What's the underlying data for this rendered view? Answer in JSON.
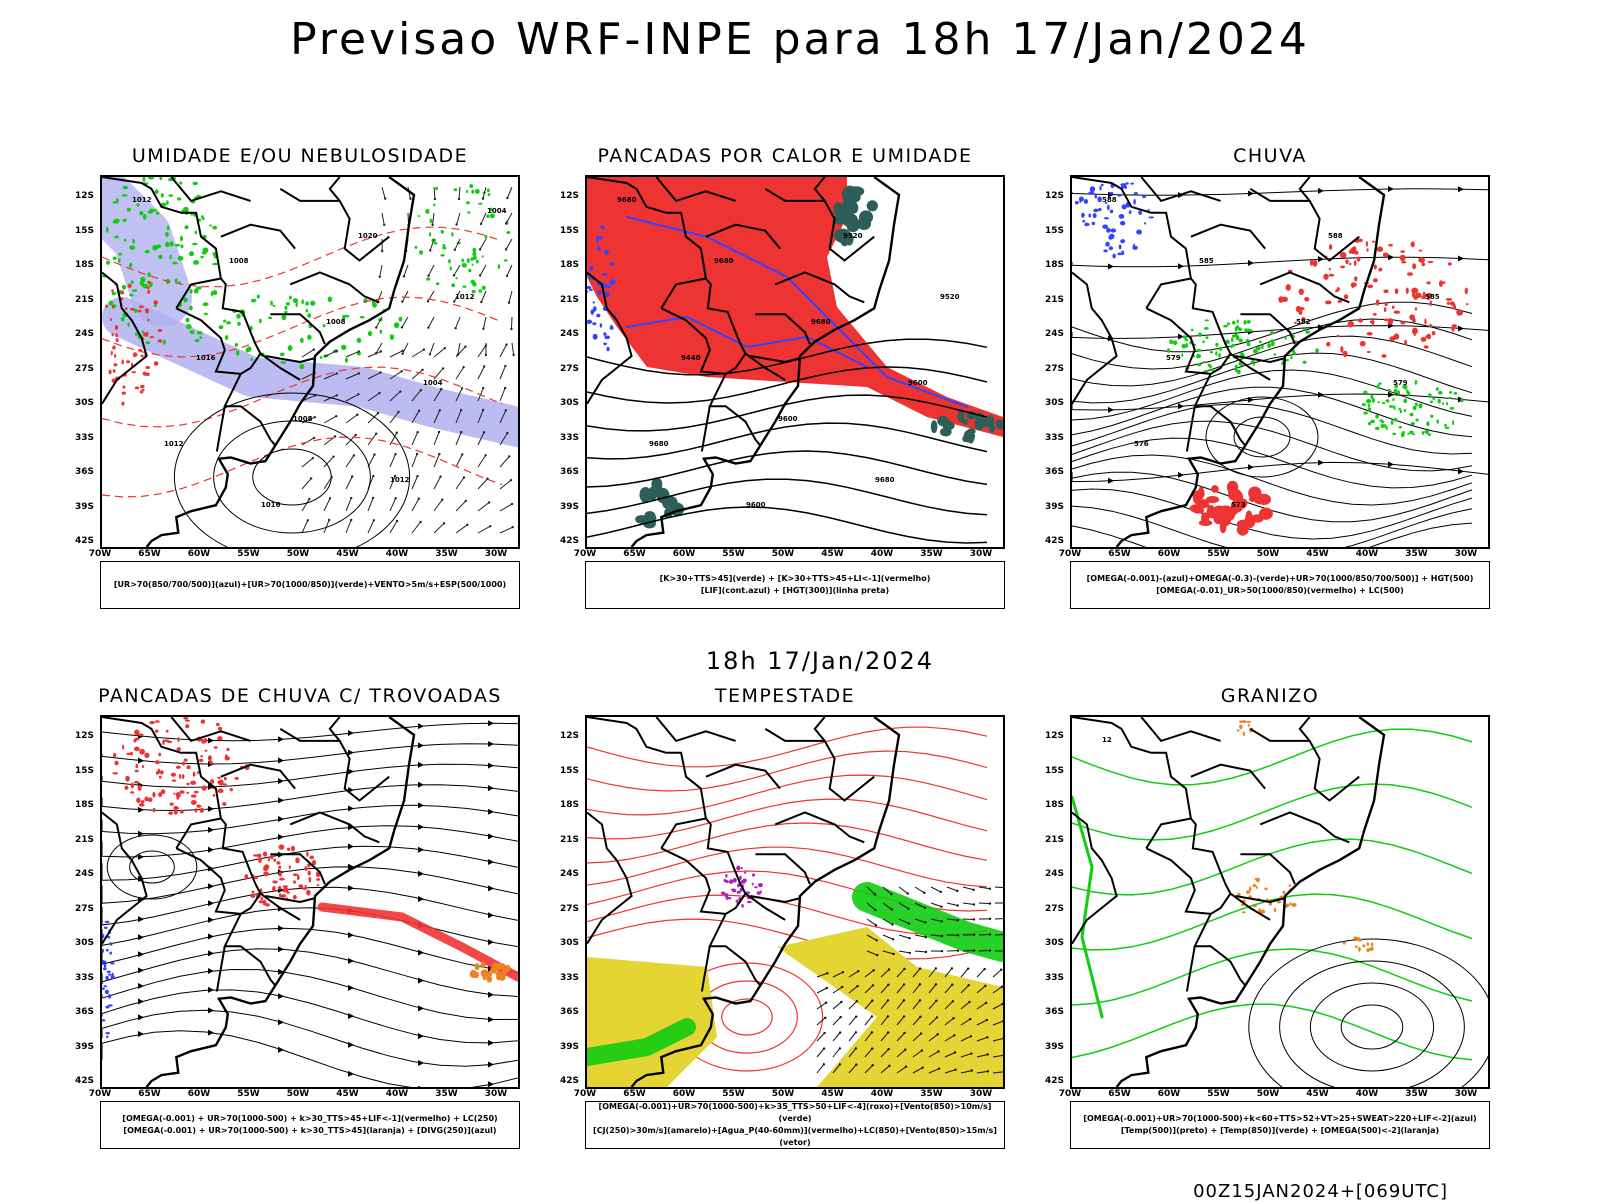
{
  "title": "Previsao WRF-INPE  para 18h 17/Jan/2024",
  "mid_title": "18h 17/Jan/2024",
  "footer": "00Z15JAN2024+[069UTC]",
  "lat_labels": [
    "12S",
    "15S",
    "18S",
    "21S",
    "24S",
    "27S",
    "30S",
    "33S",
    "36S",
    "39S",
    "42S"
  ],
  "lon_labels": [
    "70W",
    "65W",
    "60W",
    "55W",
    "50W",
    "45W",
    "40W",
    "35W",
    "30W"
  ],
  "panels": [
    {
      "title": "UMIDADE E/OU NEBULOSIDADE",
      "legend": [
        "[UR>70(850/700/500)](azul)+[UR>70(1000/850)](verde)+VENTO>5m/s+ESP(500/1000)"
      ],
      "contour_labels": [
        "1012",
        "1008",
        "1008",
        "1004",
        "1012",
        "1016",
        "1020",
        "1012",
        "1016",
        "1008",
        "1012",
        "1004"
      ]
    },
    {
      "title": "PANCADAS POR CALOR E UMIDADE",
      "legend": [
        "[K>30+TTS>45](verde) + [K>30+TTS>45+LI<-1](vermelho)",
        "[LIF](cont.azul) + [HGT(300)](linha preta)"
      ],
      "contour_labels": [
        "9680",
        "9680",
        "9680",
        "9600",
        "9680",
        "9600",
        "9520",
        "9520",
        "9440",
        "9600",
        "9680"
      ]
    },
    {
      "title": "CHUVA",
      "legend": [
        "[OMEGA(-0.001)-(azul)+OMEGA(-0.3)-(verde)+UR>70(1000/850/700/500)] + HGT(500)",
        "[OMEGA(-0.01)_UR>50(1000/850)(vermelho) + LC(500)"
      ],
      "contour_labels": [
        "588",
        "585",
        "582",
        "579",
        "576",
        "573",
        "588",
        "585",
        "579"
      ]
    },
    {
      "title": "PANCADAS DE CHUVA C/ TROVOADAS",
      "legend": [
        "[OMEGA(-0.001) + UR>70(1000-500) + k>30_TTS>45+LIF<-1](vermelho) + LC(250)",
        "[OMEGA(-0.001) + UR>70(1000-500) + k>30_TTS>45](laranja) + [DIVG(250)](azul)"
      ],
      "contour_labels": []
    },
    {
      "title": "TEMPESTADE",
      "legend": [
        "[OMEGA(-0.001)+UR>70(1000-500)+k>35_TTS>50+LIF<-4](roxo)+[Vento(850)>10m/s](verde)",
        "[CJ(250)>30m/s](amarelo)+[Agua_P(40-60mm)](vermelho)+LC(850)+[Vento(850)>15m/s](vetor)"
      ],
      "contour_labels": []
    },
    {
      "title": "GRANIZO",
      "legend": [
        "[OMEGA(-0.001)+UR>70(1000-500)+k<60+TTS>52+VT>25+SWEAT>220+LIF<-2](azul)",
        "[Temp(500)](preto) + [Temp(850)](verde) + [OMEGA(500)<-2](laranja)"
      ],
      "contour_labels": [
        "12"
      ]
    }
  ],
  "colors": {
    "red": "#ee3333",
    "green": "#11cc11",
    "blue": "#3344ff",
    "lavender": "#b0b0f0",
    "teal": "#2e5e5a",
    "yellow": "#e5d534",
    "orange": "#f08020",
    "purple": "#b020c0"
  }
}
